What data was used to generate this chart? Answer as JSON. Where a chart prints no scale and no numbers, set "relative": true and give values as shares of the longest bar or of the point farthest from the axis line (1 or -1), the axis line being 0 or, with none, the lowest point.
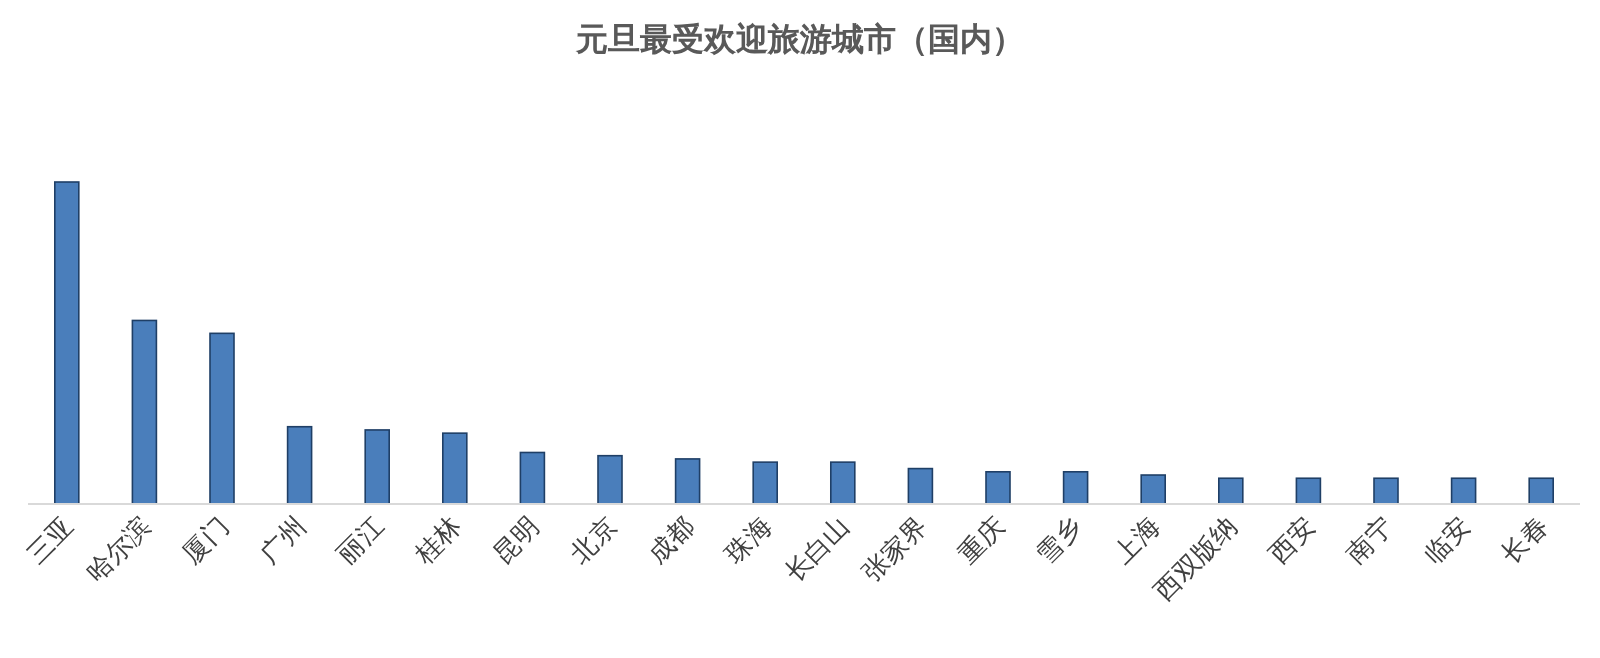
{
  "chart_data": {
    "type": "bar",
    "title": "元旦最受欢迎旅游城市（国内）",
    "relative": true,
    "color": "#4a7ebb",
    "categories": [
      "三亚",
      "哈尔滨",
      "厦门",
      "广州",
      "丽江",
      "桂林",
      "昆明",
      "北京",
      "成都",
      "珠海",
      "长白山",
      "张家界",
      "重庆",
      "雪乡",
      "上海",
      "西双版纳",
      "西安",
      "南宁",
      "临安",
      "长春"
    ],
    "values": [
      1,
      0.57,
      0.53,
      0.24,
      0.23,
      0.22,
      0.16,
      0.15,
      0.14,
      0.13,
      0.13,
      0.11,
      0.1,
      0.1,
      0.09,
      0.08,
      0.08,
      0.08,
      0.08,
      0.08
    ]
  }
}
